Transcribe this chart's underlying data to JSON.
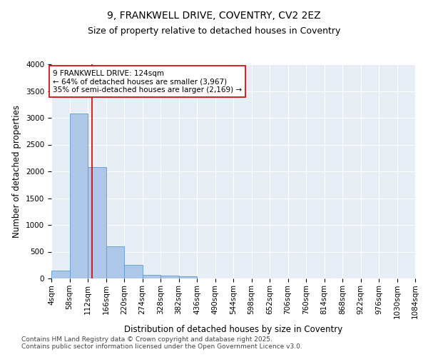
{
  "title1": "9, FRANKWELL DRIVE, COVENTRY, CV2 2EZ",
  "title2": "Size of property relative to detached houses in Coventry",
  "xlabel": "Distribution of detached houses by size in Coventry",
  "ylabel": "Number of detached properties",
  "annotation_line1": "9 FRANKWELL DRIVE: 124sqm",
  "annotation_line2": "← 64% of detached houses are smaller (3,967)",
  "annotation_line3": "35% of semi-detached houses are larger (2,169) →",
  "property_size": 124,
  "bin_edges": [
    4,
    58,
    112,
    166,
    220,
    274,
    328,
    382,
    436,
    490,
    544,
    598,
    652,
    706,
    760,
    814,
    868,
    922,
    976,
    1030,
    1084
  ],
  "bar_heights": [
    150,
    3080,
    2080,
    600,
    250,
    70,
    50,
    40,
    0,
    0,
    0,
    0,
    0,
    0,
    0,
    0,
    0,
    0,
    0,
    0
  ],
  "bar_color": "#aec6e8",
  "bar_edge_color": "#5b9bd5",
  "line_color": "#cc0000",
  "box_color": "#cc0000",
  "background_color": "#e8eef5",
  "ylim": [
    0,
    4000
  ],
  "yticks": [
    0,
    500,
    1000,
    1500,
    2000,
    2500,
    3000,
    3500,
    4000
  ],
  "footer_line1": "Contains HM Land Registry data © Crown copyright and database right 2025.",
  "footer_line2": "Contains public sector information licensed under the Open Government Licence v3.0.",
  "title_fontsize": 10,
  "subtitle_fontsize": 9,
  "label_fontsize": 8.5,
  "tick_fontsize": 7.5,
  "annot_fontsize": 7.5,
  "footer_fontsize": 6.5
}
